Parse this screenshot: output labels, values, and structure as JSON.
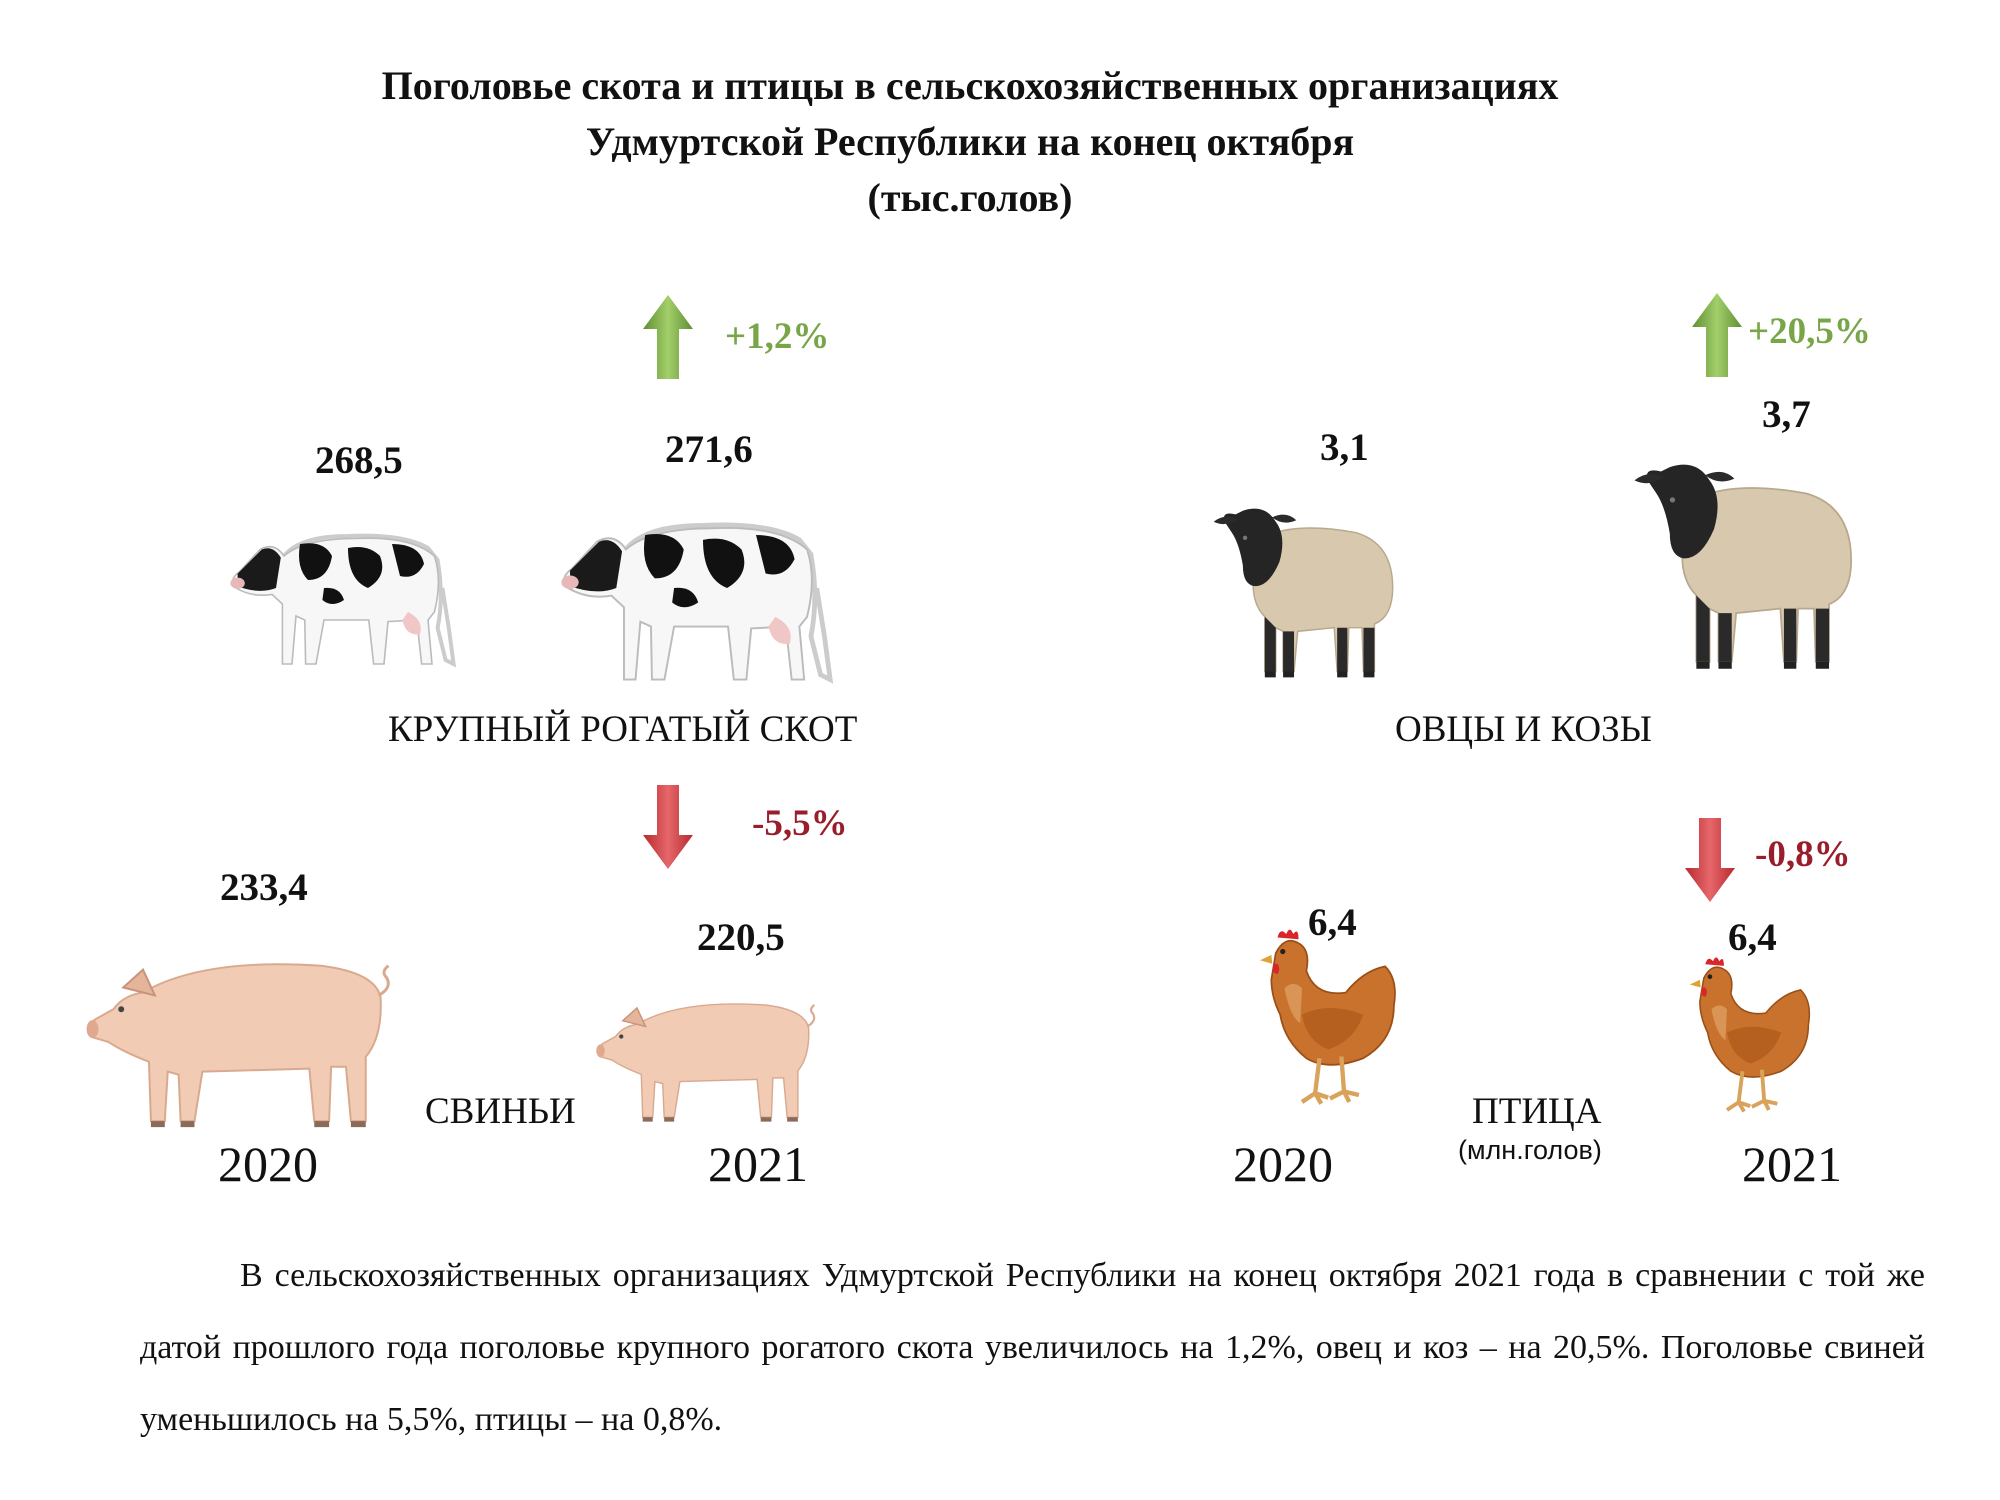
{
  "title": {
    "line1": "Поголовье скота и птицы в сельскохозяйственных организациях",
    "line2": "Удмуртской Республики на конец октября",
    "line3": "(тыс.голов)"
  },
  "colors": {
    "increase": "#77a548",
    "decrease": "#9a1d2b"
  },
  "cattle": {
    "category": "КРУПНЫЙ РОГАТЫЙ СКОТ",
    "value_2020": "268,5",
    "value_2021": "271,6",
    "change": "+1,2%",
    "direction": "up",
    "icon": "cow-icon"
  },
  "sheep": {
    "category": "ОВЦЫ И КОЗЫ",
    "value_2020": "3,1",
    "value_2021": "3,7",
    "change": "+20,5%",
    "direction": "up",
    "icon": "sheep-icon"
  },
  "pigs": {
    "category": "СВИНЬИ",
    "value_2020": "233,4",
    "value_2021": "220,5",
    "change": "-5,5%",
    "direction": "down",
    "icon": "pig-icon"
  },
  "poultry": {
    "category": "ПТИЦА",
    "unit": "(млн.голов)",
    "value_2020": "6,4",
    "value_2021": "6,4",
    "change": "-0,8%",
    "direction": "down",
    "icon": "chicken-icon"
  },
  "years": {
    "left_first": "2020",
    "left_second": "2021",
    "right_first": "2020",
    "right_second": "2021"
  },
  "paragraph": "В сельскохозяйственных организациях Удмуртской Республики на конец октября 2021 года в сравнении с той же датой прошлого года поголовье крупного рогатого скота увеличилось на 1,2%, овец и коз – на 20,5%. Поголовье свиней уменьшилось на 5,5%, птицы – на 0,8%."
}
